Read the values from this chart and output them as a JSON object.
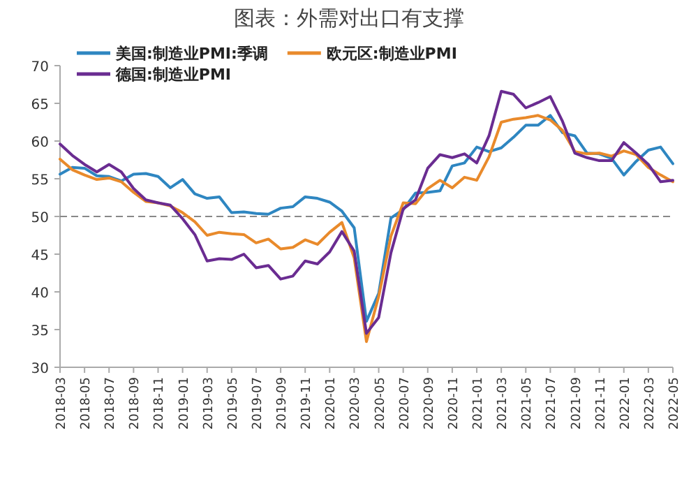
{
  "chart_data": {
    "type": "line",
    "title": "图表：外需对出口有支撑",
    "categories": [
      "2018-03",
      null,
      "2018-05",
      null,
      "2018-07",
      null,
      "2018-09",
      null,
      "2018-11",
      null,
      "2019-01",
      null,
      "2019-03",
      null,
      "2019-05",
      null,
      "2019-07",
      null,
      "2019-09",
      null,
      "2019-11",
      null,
      "2020-01",
      null,
      "2020-03",
      null,
      "2020-05",
      null,
      "2020-07",
      null,
      "2020-09",
      null,
      "2020-11",
      null,
      "2021-01",
      null,
      "2021-03",
      null,
      "2021-05",
      null,
      "2021-07",
      null,
      "2021-09",
      null,
      "2021-11",
      null,
      "2022-01",
      null,
      "2022-03",
      null,
      "2022-05"
    ],
    "series": [
      {
        "name": "美国:制造业PMI:季调",
        "color": "#2e86c1",
        "values": [
          55.6,
          56.5,
          56.4,
          55.4,
          55.3,
          54.7,
          55.6,
          55.7,
          55.3,
          53.8,
          54.9,
          53.0,
          52.4,
          52.6,
          50.5,
          50.6,
          50.4,
          50.3,
          51.1,
          51.3,
          52.6,
          52.4,
          51.9,
          50.7,
          48.5,
          36.1,
          39.8,
          49.8,
          50.9,
          53.1,
          53.2,
          53.4,
          56.7,
          57.1,
          59.2,
          58.6,
          59.1,
          60.5,
          62.1,
          62.1,
          63.4,
          61.1,
          60.7,
          58.4,
          58.3,
          57.7,
          55.5,
          57.3,
          58.8,
          59.2,
          57.0
        ]
      },
      {
        "name": "欧元区:制造业PMI",
        "color": "#e98a2b",
        "values": [
          57.6,
          56.2,
          55.5,
          54.9,
          55.1,
          54.6,
          53.2,
          52.0,
          51.8,
          51.4,
          50.5,
          49.3,
          47.5,
          47.9,
          47.7,
          47.6,
          46.5,
          47.0,
          45.7,
          45.9,
          46.9,
          46.3,
          47.9,
          49.2,
          44.5,
          33.4,
          39.4,
          47.4,
          51.8,
          51.7,
          53.7,
          54.8,
          53.8,
          55.2,
          54.8,
          57.9,
          62.5,
          62.9,
          63.1,
          63.4,
          62.8,
          61.4,
          58.6,
          58.3,
          58.4,
          58.0,
          58.7,
          58.2,
          56.5,
          55.5,
          54.6
        ]
      },
      {
        "name": "德国:制造业PMI",
        "color": "#6a2c91",
        "values": [
          59.6,
          58.1,
          56.9,
          55.9,
          56.9,
          55.9,
          53.7,
          52.2,
          51.8,
          51.5,
          49.7,
          47.6,
          44.1,
          44.4,
          44.3,
          45.0,
          43.2,
          43.5,
          41.7,
          42.1,
          44.1,
          43.7,
          45.3,
          48.0,
          45.4,
          34.5,
          36.6,
          45.2,
          51.0,
          52.2,
          56.4,
          58.2,
          57.8,
          58.3,
          57.1,
          60.7,
          66.6,
          66.2,
          64.4,
          65.1,
          65.9,
          62.6,
          58.4,
          57.8,
          57.4,
          57.4,
          59.8,
          58.4,
          56.9,
          54.6,
          54.8
        ]
      }
    ],
    "ylim": [
      30,
      70
    ],
    "yticks": [
      30,
      35,
      40,
      45,
      50,
      55,
      60,
      65,
      70
    ],
    "ref_lines": [
      {
        "axis": "y",
        "value": 50,
        "color": "#888888",
        "line_style": "dashed"
      }
    ],
    "legend": "top",
    "grid": false,
    "marker": "none",
    "line_style": "solid"
  }
}
